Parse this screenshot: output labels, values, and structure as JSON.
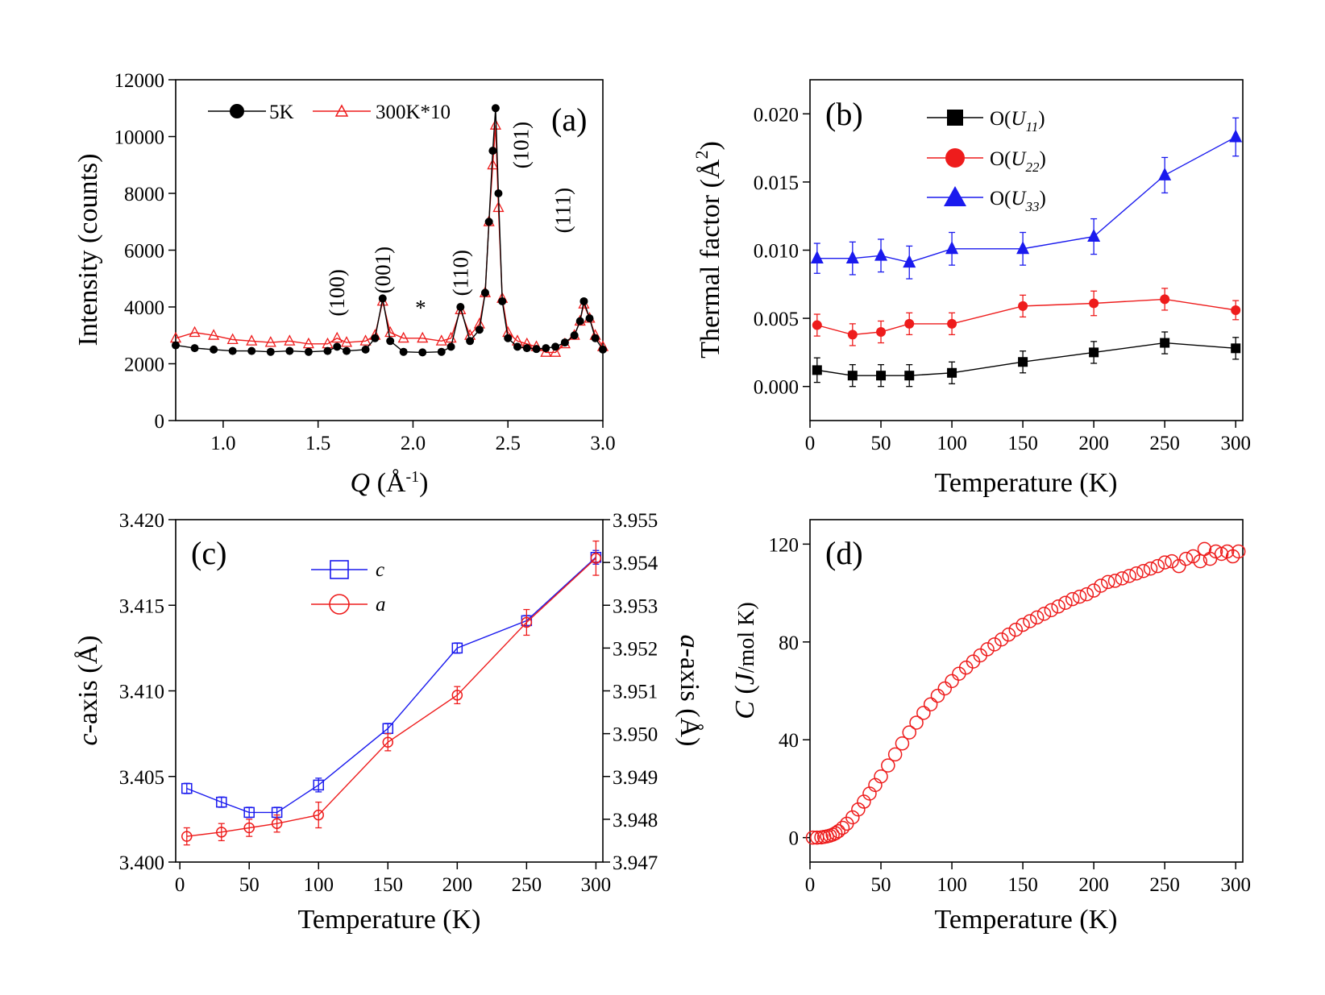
{
  "colors": {
    "black": "#000000",
    "red": "#ee1c1c",
    "blue": "#1a1aee",
    "frame": "#000000"
  },
  "chart_data": [
    {
      "id": "a",
      "type": "line",
      "panel_label": "(a)",
      "xlabel": {
        "prefix": "",
        "italic": "Q",
        "rest": " (Å",
        "sup": "-1",
        "close": ")"
      },
      "ylabel": "Intensity (counts)",
      "xlim": [
        0.75,
        3.0
      ],
      "ylim": [
        0,
        12000
      ],
      "x_ticks": [
        1.0,
        1.5,
        2.0,
        2.5,
        3.0
      ],
      "x_tick_labels": [
        "1.0",
        "1.5",
        "2.0",
        "2.5",
        "3.0"
      ],
      "y_ticks": [
        0,
        2000,
        4000,
        6000,
        8000,
        10000,
        12000
      ],
      "y_tick_labels": [
        "0",
        "2000",
        "4000",
        "6000",
        "8000",
        "10000",
        "12000"
      ],
      "legend": [
        "5K",
        "300K*10"
      ],
      "series": [
        {
          "name": "5K",
          "color": "black",
          "marker": "filled-circle",
          "x": [
            0.75,
            0.85,
            0.95,
            1.05,
            1.15,
            1.25,
            1.35,
            1.45,
            1.55,
            1.6,
            1.65,
            1.75,
            1.8,
            1.84,
            1.88,
            1.95,
            2.05,
            2.15,
            2.2,
            2.25,
            2.3,
            2.35,
            2.38,
            2.4,
            2.42,
            2.435,
            2.45,
            2.47,
            2.5,
            2.55,
            2.6,
            2.65,
            2.7,
            2.75,
            2.8,
            2.85,
            2.88,
            2.9,
            2.93,
            2.96,
            3.0
          ],
          "y": [
            2650,
            2550,
            2500,
            2450,
            2450,
            2420,
            2450,
            2420,
            2450,
            2600,
            2450,
            2500,
            2900,
            4300,
            2800,
            2420,
            2400,
            2420,
            2600,
            4000,
            2800,
            3200,
            4500,
            7000,
            9500,
            11000,
            8000,
            4200,
            2900,
            2600,
            2550,
            2520,
            2550,
            2600,
            2750,
            3000,
            3500,
            4200,
            3600,
            2900,
            2500
          ]
        },
        {
          "name": "300K*10",
          "color": "red",
          "marker": "open-triangle",
          "x": [
            0.75,
            0.85,
            0.95,
            1.05,
            1.15,
            1.25,
            1.35,
            1.45,
            1.55,
            1.6,
            1.65,
            1.75,
            1.8,
            1.84,
            1.88,
            1.95,
            2.05,
            2.15,
            2.2,
            2.25,
            2.3,
            2.35,
            2.38,
            2.4,
            2.42,
            2.435,
            2.45,
            2.47,
            2.5,
            2.55,
            2.6,
            2.65,
            2.7,
            2.75,
            2.8,
            2.85,
            2.88,
            2.9,
            2.93,
            2.96,
            3.0
          ],
          "y": [
            2900,
            3100,
            3000,
            2850,
            2800,
            2750,
            2800,
            2700,
            2700,
            2900,
            2750,
            2800,
            3000,
            4200,
            3100,
            2900,
            2900,
            2800,
            2900,
            3900,
            3000,
            3400,
            4500,
            7000,
            9000,
            10400,
            7500,
            4300,
            3100,
            2800,
            2700,
            2600,
            2400,
            2400,
            2700,
            3000,
            3500,
            4100,
            3600,
            3000,
            2600
          ]
        }
      ],
      "annotations": [
        {
          "text": "(100)",
          "x": 1.6,
          "y": 4500
        },
        {
          "text": "(001)",
          "x": 1.84,
          "y": 5300
        },
        {
          "text": "*",
          "x": 2.04,
          "y": 4000
        },
        {
          "text": "(110)",
          "x": 2.25,
          "y": 5200
        },
        {
          "text": "(101)",
          "x": 2.57,
          "y": 9700
        },
        {
          "text": "(111)",
          "x": 2.79,
          "y": 7400
        }
      ]
    },
    {
      "id": "b",
      "type": "line",
      "panel_label": "(b)",
      "xlabel": "Temperature (K)",
      "ylabel": {
        "text": "Thermal factor (Å",
        "sup": "2",
        "close": ")"
      },
      "xlim": [
        0,
        305
      ],
      "ylim": [
        -0.0025,
        0.0225
      ],
      "x_ticks": [
        0,
        50,
        100,
        150,
        200,
        250,
        300
      ],
      "x_tick_labels": [
        "0",
        "50",
        "100",
        "150",
        "200",
        "250",
        "300"
      ],
      "y_ticks": [
        0.0,
        0.005,
        0.01,
        0.015,
        0.02
      ],
      "y_tick_labels": [
        "0.000",
        "0.005",
        "0.010",
        "0.015",
        "0.020"
      ],
      "legend": [
        {
          "pre": "O(",
          "it": "U",
          "sub": "11",
          "post": ")"
        },
        {
          "pre": "O(",
          "it": "U",
          "sub": "22",
          "post": ")"
        },
        {
          "pre": "O(",
          "it": "U",
          "sub": "33",
          "post": ")"
        }
      ],
      "series": [
        {
          "name": "O(U11)",
          "color": "black",
          "marker": "filled-square",
          "x": [
            5,
            30,
            50,
            70,
            100,
            150,
            200,
            250,
            300
          ],
          "y": [
            0.0012,
            0.0008,
            0.0008,
            0.0008,
            0.001,
            0.0018,
            0.0025,
            0.0032,
            0.0028
          ],
          "err": [
            0.0009,
            0.0008,
            0.0008,
            0.0008,
            0.0008,
            0.0008,
            0.0008,
            0.0008,
            0.0008
          ]
        },
        {
          "name": "O(U22)",
          "color": "red",
          "marker": "filled-circle",
          "x": [
            5,
            30,
            50,
            70,
            100,
            150,
            200,
            250,
            300
          ],
          "y": [
            0.0045,
            0.0038,
            0.004,
            0.0046,
            0.0046,
            0.0059,
            0.0061,
            0.0064,
            0.0056
          ],
          "err": [
            0.0008,
            0.0008,
            0.0008,
            0.0008,
            0.0008,
            0.0008,
            0.0009,
            0.0008,
            0.0007
          ]
        },
        {
          "name": "O(U33)",
          "color": "blue",
          "marker": "filled-triangle",
          "x": [
            5,
            30,
            50,
            70,
            100,
            150,
            200,
            250,
            300
          ],
          "y": [
            0.0094,
            0.0094,
            0.0096,
            0.0091,
            0.0101,
            0.0101,
            0.011,
            0.0155,
            0.0183
          ],
          "err": [
            0.0011,
            0.0012,
            0.0012,
            0.0012,
            0.0012,
            0.0012,
            0.0013,
            0.0013,
            0.0014
          ]
        }
      ]
    },
    {
      "id": "c",
      "type": "line",
      "panel_label": "(c)",
      "xlabel": "Temperature (K)",
      "ylabel_left": {
        "it": "c",
        "rest": "-axis (Å)"
      },
      "ylabel_right": {
        "it": "a",
        "rest": "-axis (Å)"
      },
      "xlim": [
        -3,
        305
      ],
      "ylim_left": [
        3.4,
        3.42
      ],
      "ylim_right": [
        3.947,
        3.955
      ],
      "x_ticks": [
        0,
        50,
        100,
        150,
        200,
        250,
        300
      ],
      "x_tick_labels": [
        "0",
        "50",
        "100",
        "150",
        "200",
        "250",
        "300"
      ],
      "y_ticks_left": [
        3.4,
        3.405,
        3.41,
        3.415,
        3.42
      ],
      "y_tick_labels_left": [
        "3.400",
        "3.405",
        "3.410",
        "3.415",
        "3.420"
      ],
      "y_ticks_right": [
        3.947,
        3.948,
        3.949,
        3.95,
        3.951,
        3.952,
        3.953,
        3.954,
        3.955
      ],
      "y_tick_labels_right": [
        "3.947",
        "3.948",
        "3.949",
        "3.950",
        "3.951",
        "3.952",
        "3.953",
        "3.954",
        "3.955"
      ],
      "legend": [
        "c",
        "a"
      ],
      "series": [
        {
          "name": "c",
          "axis": "left",
          "color": "blue",
          "marker": "open-square",
          "x": [
            5,
            30,
            50,
            70,
            100,
            150,
            200,
            250,
            300
          ],
          "y": [
            3.4043,
            3.4035,
            3.4029,
            3.4029,
            3.4045,
            3.4078,
            3.4125,
            3.4141,
            3.4178
          ],
          "err": [
            0.0003,
            0.0003,
            0.0003,
            0.0003,
            0.0004,
            0.0003,
            0.0003,
            0.0003,
            0.0004
          ]
        },
        {
          "name": "a",
          "axis": "right",
          "color": "red",
          "marker": "open-circle",
          "x": [
            5,
            30,
            50,
            70,
            100,
            150,
            200,
            250,
            300
          ],
          "y": [
            3.9476,
            3.9477,
            3.9478,
            3.9479,
            3.9481,
            3.9498,
            3.9509,
            3.9526,
            3.9541
          ],
          "err": [
            0.0002,
            0.0002,
            0.0002,
            0.0002,
            0.0003,
            0.0002,
            0.0002,
            0.0003,
            0.0004
          ]
        }
      ]
    },
    {
      "id": "d",
      "type": "scatter",
      "panel_label": "(d)",
      "xlabel": "Temperature (K)",
      "ylabel": {
        "it1": "C",
        "mid": " (",
        "it2": "J",
        "rest": "/mol K)"
      },
      "xlim": [
        0,
        305
      ],
      "ylim": [
        -10,
        130
      ],
      "x_ticks": [
        0,
        50,
        100,
        150,
        200,
        250,
        300
      ],
      "x_tick_labels": [
        "0",
        "50",
        "100",
        "150",
        "200",
        "250",
        "300"
      ],
      "y_ticks": [
        0,
        40,
        80,
        120
      ],
      "y_tick_labels": [
        "0",
        "40",
        "80",
        "120"
      ],
      "series": [
        {
          "name": "C",
          "color": "red",
          "marker": "open-circle",
          "x": [
            2,
            5,
            8,
            10,
            12,
            14,
            16,
            18,
            20,
            23,
            26,
            30,
            34,
            38,
            42,
            46,
            50,
            55,
            60,
            65,
            70,
            75,
            80,
            85,
            90,
            95,
            100,
            105,
            110,
            115,
            120,
            125,
            130,
            135,
            140,
            145,
            150,
            155,
            160,
            165,
            170,
            175,
            180,
            185,
            190,
            195,
            200,
            205,
            210,
            215,
            220,
            225,
            230,
            235,
            240,
            245,
            250,
            255,
            260,
            265,
            270,
            275,
            278,
            282,
            286,
            290,
            294,
            298,
            302
          ],
          "y": [
            0,
            0,
            0.1,
            0.3,
            0.5,
            0.8,
            1.2,
            1.8,
            2.6,
            4,
            5.7,
            8.3,
            11.5,
            14.7,
            18,
            21.5,
            25,
            29.5,
            34,
            38.5,
            43,
            47,
            51,
            54.5,
            58,
            61,
            64,
            67,
            69.5,
            72,
            74.5,
            77,
            79,
            81,
            83,
            85,
            87,
            88.5,
            90,
            91.5,
            93,
            94.5,
            96,
            97.5,
            98.5,
            99.5,
            101,
            103,
            104.5,
            105,
            106,
            107,
            108,
            109,
            110,
            111,
            112.5,
            113,
            111,
            114,
            115,
            113,
            118,
            114,
            117,
            116,
            117,
            115,
            117
          ]
        }
      ]
    }
  ]
}
